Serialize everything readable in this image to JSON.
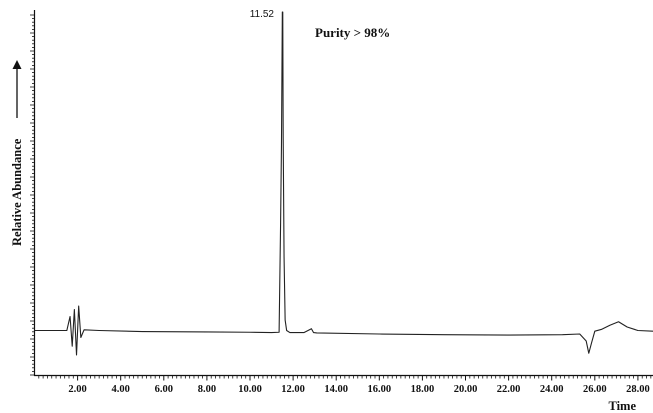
{
  "chart_data": {
    "type": "line",
    "title": "",
    "xlabel": "Time",
    "ylabel": "Relative Abundance",
    "xlim": [
      0.0,
      28.7
    ],
    "ylim": [
      0,
      100
    ],
    "grid": false,
    "x_ticks": [
      "2.00",
      "4.00",
      "6.00",
      "8.00",
      "10.00",
      "12.00",
      "14.00",
      "16.00",
      "18.00",
      "20.00",
      "22.00",
      "24.00",
      "26.00",
      "28.00"
    ],
    "x_tick_values": [
      2,
      4,
      6,
      8,
      10,
      12,
      14,
      16,
      18,
      20,
      22,
      24,
      26,
      28
    ],
    "series": [
      {
        "x": [
          0.0,
          1.5,
          1.65,
          1.75,
          1.85,
          1.95,
          2.05,
          2.15,
          2.3,
          3.0,
          5.0,
          8.0,
          10.0,
          11.0,
          11.35,
          11.42,
          11.46,
          11.5,
          11.52,
          11.54,
          11.58,
          11.63,
          11.7,
          11.85,
          12.5,
          12.85,
          12.95,
          13.1,
          16.0,
          19.0,
          22.0,
          24.5,
          25.3,
          25.6,
          25.72,
          25.85,
          26.0,
          26.3,
          26.7,
          27.1,
          27.5,
          28.0,
          28.7
        ],
        "values": [
          9.0,
          9.0,
          13.0,
          4.5,
          15.0,
          2.0,
          16.0,
          7.0,
          9.2,
          9.0,
          8.7,
          8.6,
          8.5,
          8.4,
          8.5,
          40.0,
          62.0,
          100.0,
          100.0,
          64.0,
          30.0,
          12.0,
          9.0,
          8.4,
          8.4,
          9.5,
          8.4,
          8.3,
          8.0,
          7.8,
          7.7,
          7.8,
          8.0,
          6.0,
          2.5,
          5.5,
          8.8,
          9.3,
          10.5,
          11.5,
          10.0,
          9.0,
          8.8
        ]
      }
    ]
  },
  "annotations": {
    "peak_label": "11.52",
    "purity": "Purity > 98%"
  },
  "colors": {
    "line": "#222222",
    "axis": "#111111"
  }
}
